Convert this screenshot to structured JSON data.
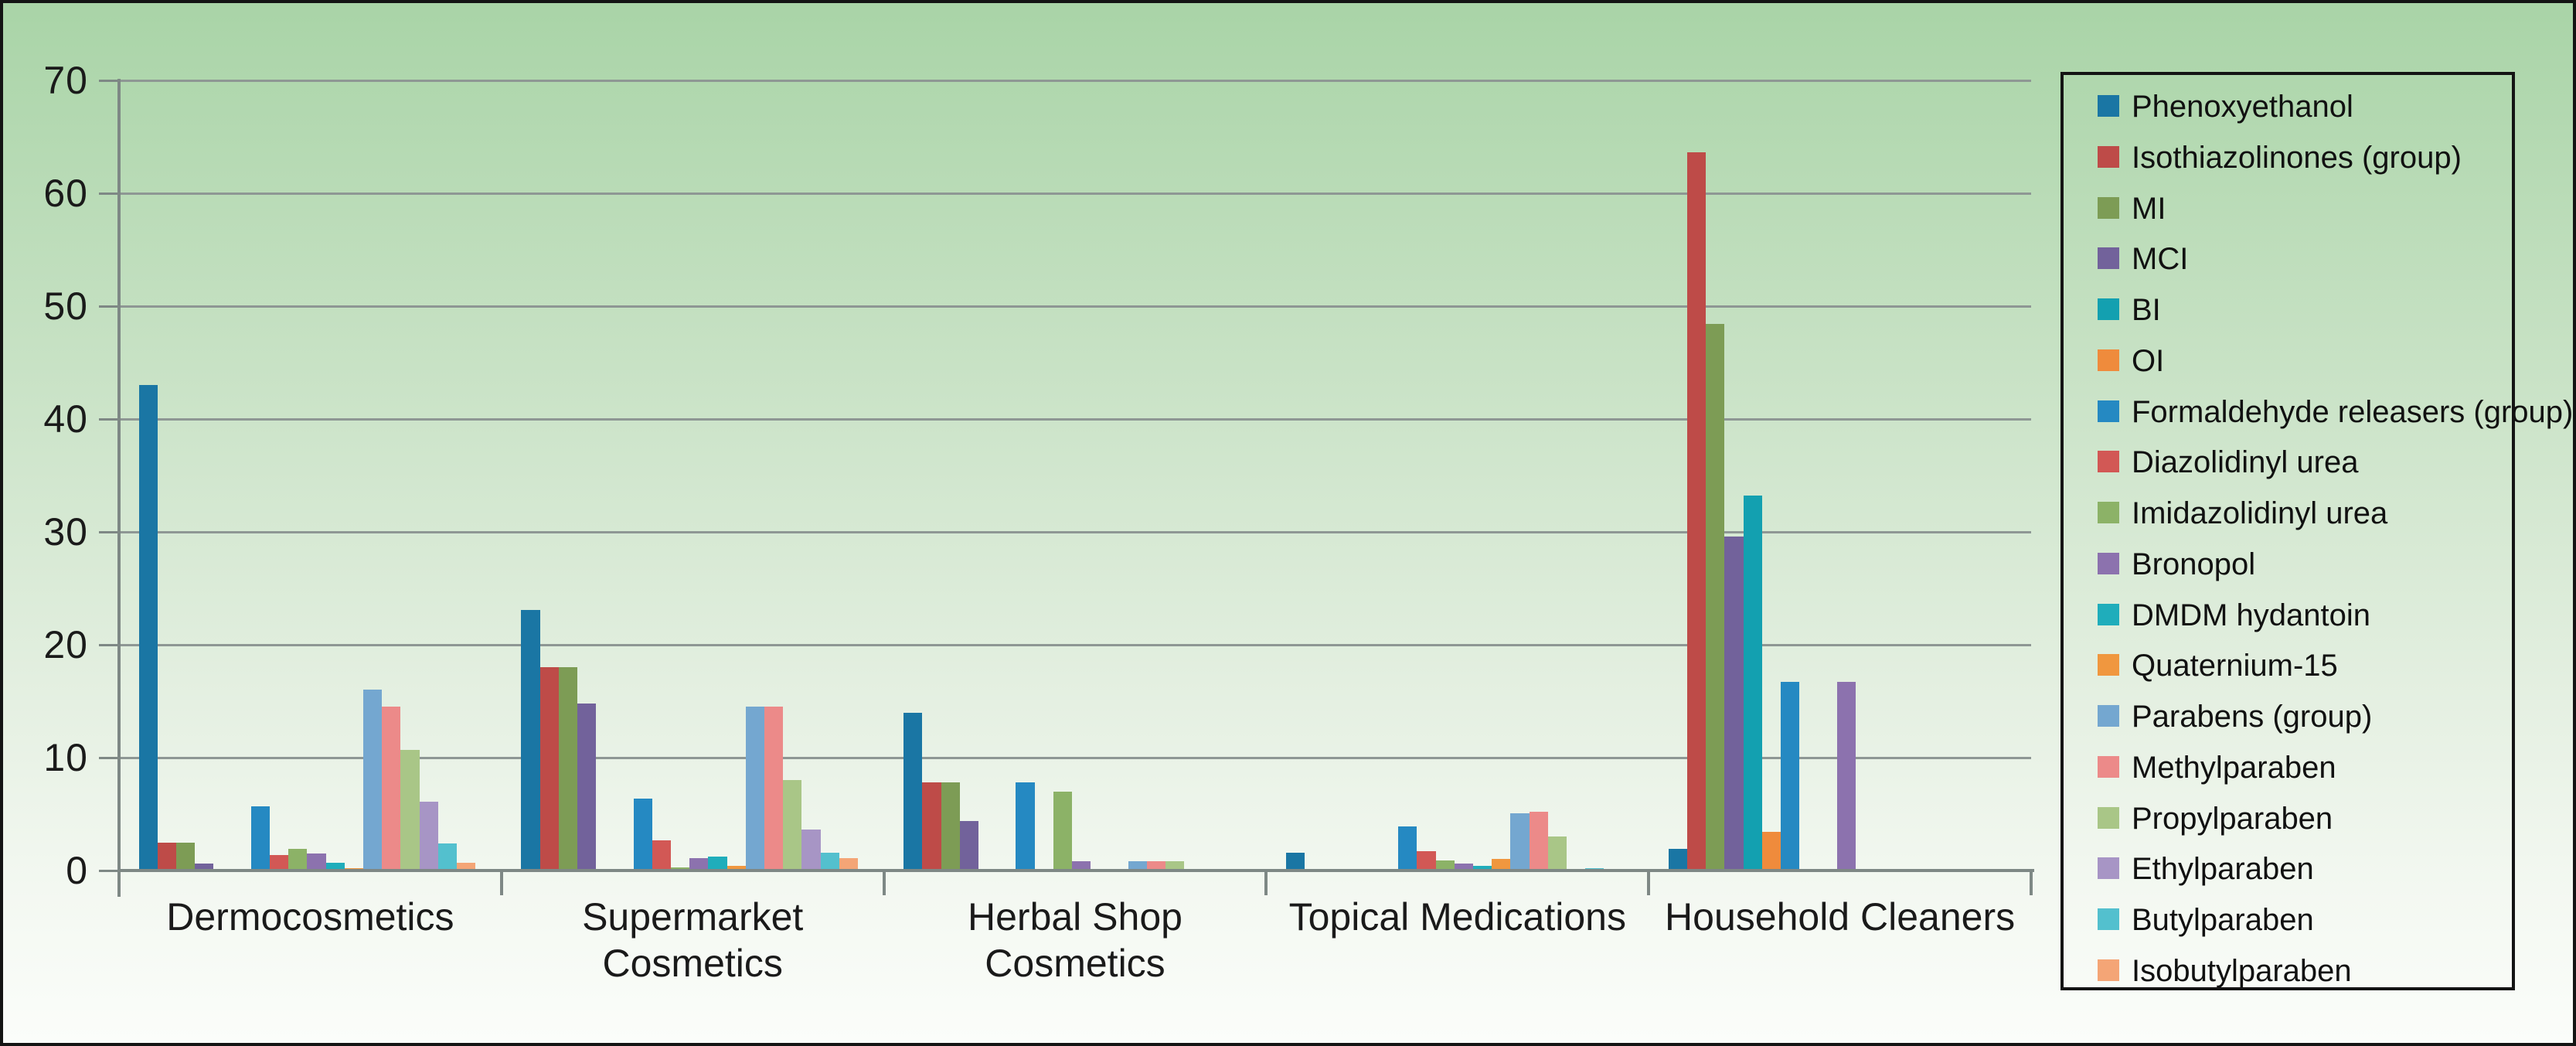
{
  "chart_data": {
    "type": "bar",
    "title": "",
    "xlabel": "",
    "ylabel": "",
    "ylim": [
      0,
      70
    ],
    "y_ticks": [
      0,
      10,
      20,
      30,
      40,
      50,
      60,
      70
    ],
    "grid": true,
    "legend_position": "right",
    "categories": [
      "Dermocosmetics",
      "Supermarket\nCosmetics",
      "Herbal Shop Cosmetics",
      "Topical Medications",
      "Household Cleaners"
    ],
    "series": [
      {
        "name": "Phenoxyethanol",
        "color": "#1a76a4",
        "values": [
          43.0,
          23.1,
          14.0,
          1.6,
          1.9
        ]
      },
      {
        "name": "Isothiazolinones (group)",
        "color": "#be4b48",
        "values": [
          2.5,
          18.0,
          7.8,
          0,
          63.6
        ]
      },
      {
        "name": "MI",
        "color": "#7d9c55",
        "values": [
          2.5,
          18.0,
          7.8,
          0,
          48.4
        ]
      },
      {
        "name": "MCI",
        "color": "#72629b",
        "values": [
          0.6,
          14.8,
          4.4,
          0,
          29.6
        ]
      },
      {
        "name": "BI",
        "color": "#13a0b0",
        "values": [
          0,
          0,
          0,
          0,
          33.2
        ]
      },
      {
        "name": "OI",
        "color": "#ef8b3c",
        "values": [
          0,
          0,
          0,
          0,
          3.4
        ]
      },
      {
        "name": "Formaldehyde releasers (group)",
        "color": "#2589c2",
        "values": [
          5.7,
          6.4,
          7.8,
          3.9,
          16.7
        ]
      },
      {
        "name": "Diazolidinyl urea",
        "color": "#d25855",
        "values": [
          1.4,
          2.7,
          0,
          1.7,
          0
        ]
      },
      {
        "name": "Imidazolidinyl urea",
        "color": "#8cb267",
        "values": [
          1.9,
          0.3,
          7.0,
          0.9,
          0
        ]
      },
      {
        "name": "Bronopol",
        "color": "#8c72ae",
        "values": [
          1.5,
          1.1,
          0.8,
          0.6,
          16.7
        ]
      },
      {
        "name": "DMDM hydantoin",
        "color": "#1fadbb",
        "values": [
          0.7,
          1.2,
          0,
          0.4,
          0
        ]
      },
      {
        "name": "Quaternium-15",
        "color": "#f0973f",
        "values": [
          0.2,
          0.4,
          0,
          1.0,
          0
        ]
      },
      {
        "name": "Parabens (group)",
        "color": "#74a7d0",
        "values": [
          16.0,
          14.5,
          0.8,
          5.1,
          0
        ]
      },
      {
        "name": "Methylparaben",
        "color": "#ec8a89",
        "values": [
          14.5,
          14.5,
          0.8,
          5.2,
          0
        ]
      },
      {
        "name": "Propylparaben",
        "color": "#a9c687",
        "values": [
          10.7,
          8.0,
          0.8,
          3.0,
          0
        ]
      },
      {
        "name": "Ethylparaben",
        "color": "#a795c5",
        "values": [
          6.1,
          3.6,
          0,
          0,
          0
        ]
      },
      {
        "name": "Butylparaben",
        "color": "#53c0ce",
        "values": [
          2.4,
          1.6,
          0,
          0.2,
          0
        ]
      },
      {
        "name": "Isobutylparaben",
        "color": "#f4a576",
        "values": [
          0.7,
          1.1,
          0,
          0,
          0
        ]
      }
    ]
  },
  "style": {
    "background_top": "#a9d4a7",
    "background_bottom": "#fbfdfa",
    "frame_border": "#141414",
    "legend_border": "#141414",
    "gridline": "#8e9794",
    "axis": "#7e8885",
    "text": "#1a1a1a"
  }
}
